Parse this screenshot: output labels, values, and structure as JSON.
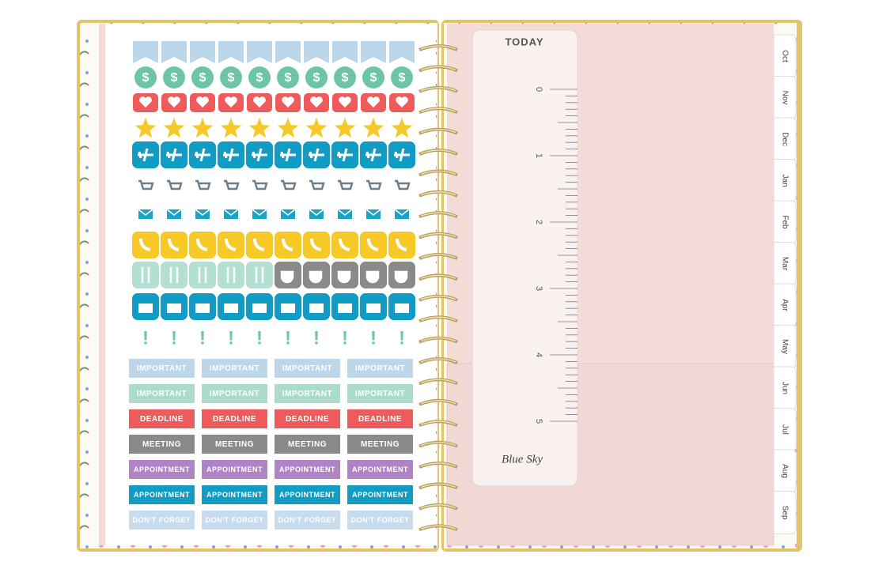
{
  "stickers": {
    "icon_glyphs": {
      "dollar": "$",
      "exclaim": "!"
    },
    "label_rows": [
      [
        "IMPORTANT",
        "IMPORTANT",
        "IMPORTANT",
        "IMPORTANT"
      ],
      [
        "IMPORTANT",
        "IMPORTANT",
        "IMPORTANT",
        "IMPORTANT"
      ],
      [
        "DEADLINE",
        "DEADLINE",
        "DEADLINE",
        "DEADLINE"
      ],
      [
        "MEETING",
        "MEETING",
        "MEETING",
        "MEETING"
      ],
      [
        "APPOINTMENT",
        "APPOINTMENT",
        "APPOINTMENT",
        "APPOINTMENT"
      ],
      [
        "APPOINTMENT",
        "APPOINTMENT",
        "APPOINTMENT",
        "APPOINTMENT"
      ],
      [
        "DON'T FORGET",
        "DON'T FORGET",
        "DON'T FORGET",
        "DON'T FORGET"
      ]
    ]
  },
  "ruler": {
    "title": "TODAY",
    "numbers": [
      0,
      1,
      2,
      3,
      4,
      5
    ],
    "brand": "Blue Sky"
  },
  "tabs": [
    "Oct",
    "Nov",
    "Dec",
    "Jan",
    "Feb",
    "Mar",
    "Apr",
    "May",
    "Jun",
    "Jul",
    "Aug",
    "Sep"
  ]
}
